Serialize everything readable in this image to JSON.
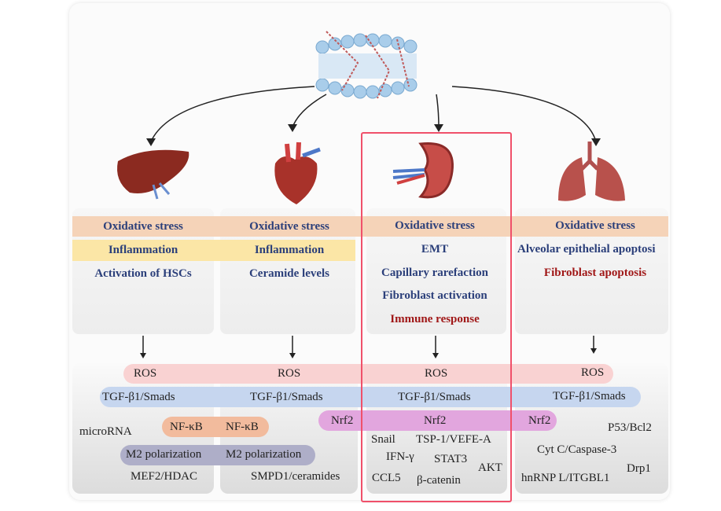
{
  "columns": [
    {
      "organ": "liver",
      "items": [
        {
          "text": "Oxidative stress"
        },
        {
          "text": "Inflammation"
        },
        {
          "text": "Activation of HSCs"
        }
      ]
    },
    {
      "organ": "heart",
      "items": [
        {
          "text": "Oxidative stress"
        },
        {
          "text": "Inflammation"
        },
        {
          "text": "Ceramide levels"
        }
      ]
    },
    {
      "organ": "kidney",
      "items": [
        {
          "text": "Oxidative stress"
        },
        {
          "text": "EMT"
        },
        {
          "text": "Capillary rarefaction"
        },
        {
          "text": "Fibroblast activation"
        },
        {
          "text": "Immune response"
        }
      ]
    },
    {
      "organ": "lung",
      "items": [
        {
          "text": "Oxidative stress"
        },
        {
          "text": "Alveolar epithelial apoptosi"
        },
        {
          "text": "Fibroblast apoptosis"
        }
      ]
    }
  ],
  "pathways": {
    "ros": [
      "ROS",
      "ROS",
      "ROS",
      "ROS"
    ],
    "tgf": [
      "TGF-β1/Smads",
      "TGF-β1/Smads",
      "TGF-β1/Smads",
      "TGF-β1/Smads"
    ],
    "nrf2": [
      "Nrf2",
      "Nrf2",
      "Nrf2"
    ],
    "nfkb": [
      "NF-κB",
      "NF-κB"
    ],
    "m2": [
      "M2 polarization",
      "M2 polarization"
    ],
    "liver": [
      "microRNA",
      "MEF2/HDAC"
    ],
    "heart": [
      "SMPD1/ceramides"
    ],
    "kidney": [
      "Snail",
      "TSP-1/VEFE-A",
      "IFN-γ",
      "STAT3",
      "AKT",
      "CCL5",
      "β-catenin"
    ],
    "lung": [
      "P53/Bcl2",
      "Cyt C/Caspase-3",
      "Drp1",
      "hnRNP L/ITGBL1"
    ]
  },
  "colors": {
    "oxidative": "#f5d3b8",
    "inflammation": "#fbe6a6",
    "ros": "#f9d2d2",
    "tgf": "#c6d6ef",
    "nrf2": "#e2a6de",
    "nfkb": "#f2bb9d",
    "m2": "#aeaec8",
    "highlight": "#f0506a",
    "title_blue": "#2b3f7a",
    "title_red": "#a01818"
  }
}
